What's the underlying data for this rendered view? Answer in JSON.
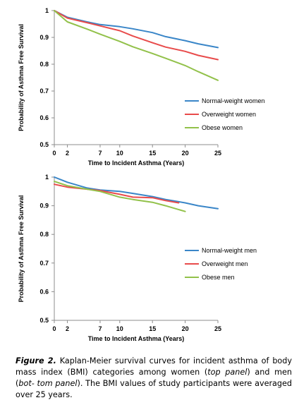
{
  "chart_data": [
    {
      "type": "line",
      "ylabel": "Probability of Asthma Free Survival",
      "xlabel": "Time to Incident Asthma (Years)",
      "xlim": [
        0,
        25
      ],
      "ylim": [
        0.5,
        1
      ],
      "xticks": [
        0,
        2,
        7,
        10,
        15,
        20,
        25
      ],
      "yticks": [
        0.5,
        0.6,
        0.7,
        0.8,
        0.9,
        1
      ],
      "ytick_labels": [
        "0.5",
        "0.6",
        "0.7",
        "0.8",
        "0.9",
        "1"
      ],
      "grid": false,
      "legend_position": "right",
      "series": [
        {
          "name": "Normal-weight women",
          "color": "#3a86c8",
          "x": [
            0,
            2,
            5,
            7,
            10,
            12,
            15,
            17,
            20,
            22,
            25
          ],
          "y": [
            1,
            0.975,
            0.958,
            0.948,
            0.94,
            0.932,
            0.918,
            0.903,
            0.888,
            0.876,
            0.862
          ]
        },
        {
          "name": "Overweight women",
          "color": "#e84b4b",
          "x": [
            0,
            2,
            5,
            7,
            10,
            12,
            15,
            17,
            20,
            22,
            25
          ],
          "y": [
            1,
            0.972,
            0.955,
            0.943,
            0.925,
            0.905,
            0.88,
            0.864,
            0.848,
            0.833,
            0.817
          ]
        },
        {
          "name": "Obese women",
          "color": "#92c14a",
          "x": [
            0,
            2,
            5,
            7,
            10,
            12,
            15,
            17,
            20,
            22,
            25
          ],
          "y": [
            1,
            0.958,
            0.931,
            0.912,
            0.885,
            0.865,
            0.84,
            0.822,
            0.795,
            0.772,
            0.74
          ]
        }
      ]
    },
    {
      "type": "line",
      "ylabel": "Probability of Asthma Free Survival",
      "xlabel": "Time to Incident Asthma (Years)",
      "xlim": [
        0,
        25
      ],
      "ylim": [
        0.5,
        1
      ],
      "xticks": [
        0,
        2,
        7,
        10,
        15,
        20,
        25
      ],
      "yticks": [
        0.5,
        0.6,
        0.7,
        0.8,
        0.9,
        1
      ],
      "ytick_labels": [
        "0.5",
        "0.6",
        "0.7",
        "0.8",
        "0.9",
        "1"
      ],
      "grid": false,
      "legend_position": "right",
      "series": [
        {
          "name": "Normal-weight men",
          "color": "#3a86c8",
          "x": [
            0,
            2,
            5,
            7,
            10,
            12,
            15,
            17,
            20,
            22,
            25
          ],
          "y": [
            1,
            0.982,
            0.962,
            0.955,
            0.95,
            0.943,
            0.932,
            0.922,
            0.91,
            0.9,
            0.89
          ]
        },
        {
          "name": "Overweight men",
          "color": "#e84b4b",
          "x": [
            0,
            2,
            5,
            7,
            10,
            12,
            15,
            17,
            19
          ],
          "y": [
            0.975,
            0.965,
            0.958,
            0.953,
            0.94,
            0.93,
            0.928,
            0.918,
            0.91
          ]
        },
        {
          "name": "Obese men",
          "color": "#92c14a",
          "x": [
            0,
            2,
            5,
            7,
            10,
            12,
            15,
            17,
            20
          ],
          "y": [
            0.985,
            0.97,
            0.958,
            0.95,
            0.93,
            0.922,
            0.912,
            0.9,
            0.88
          ]
        }
      ]
    }
  ],
  "caption": {
    "label": "Figure 2.",
    "part1": " Kaplan-Meier survival curves for incident asthma of body mass index (BMI) categories among women (",
    "italic1": "top panel",
    "part2": ") and men (",
    "italic2": "bot- tom panel",
    "part3": "). The BMI values of study participants were averaged over 25 years."
  }
}
